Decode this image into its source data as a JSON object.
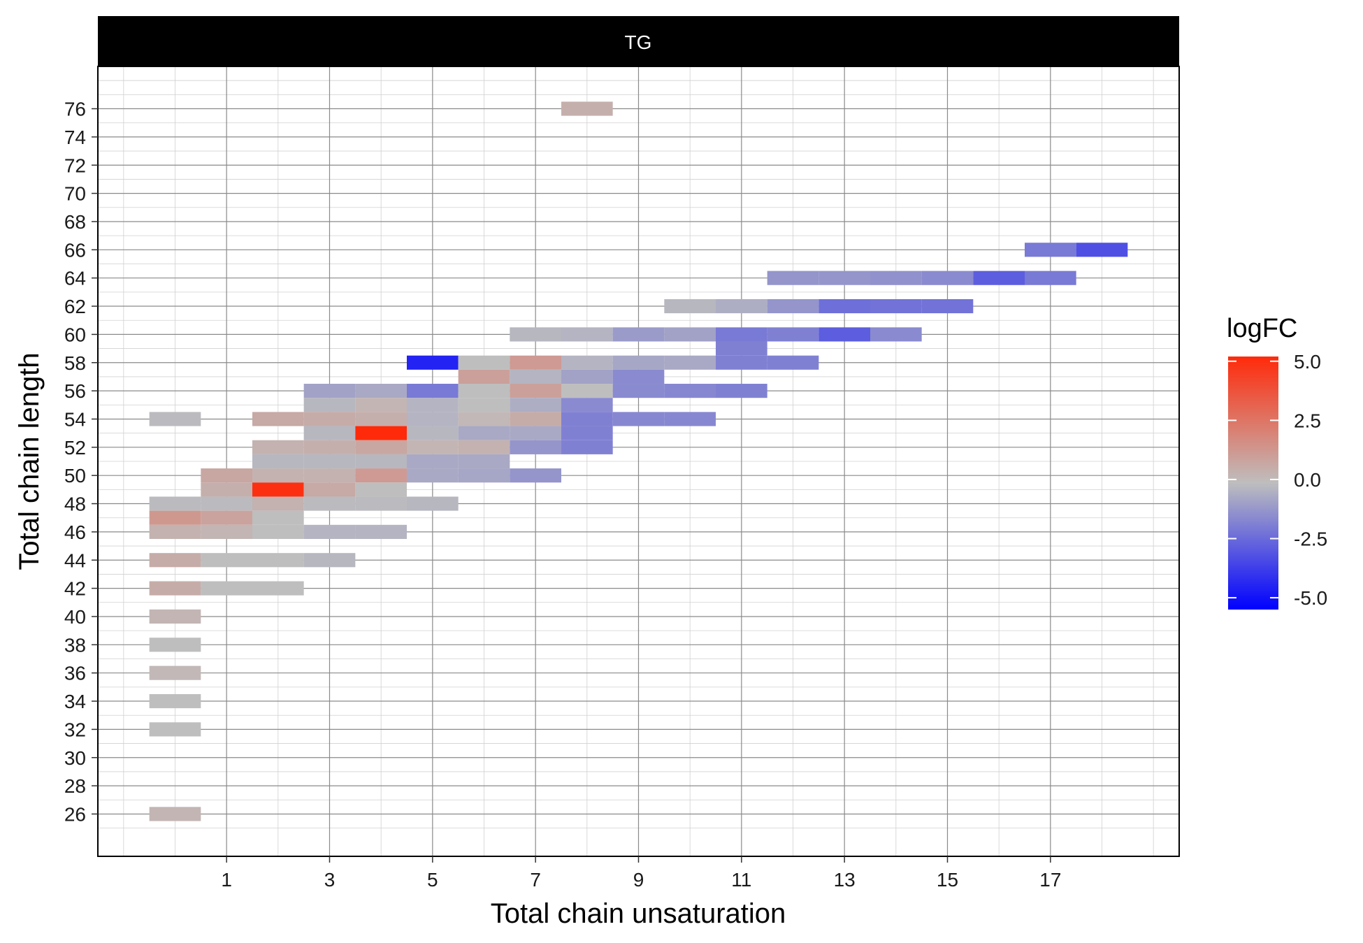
{
  "chart_data": {
    "type": "heatmap",
    "facet_label": "TG",
    "xlabel": "Total chain unsaturation",
    "ylabel": "Total chain length",
    "x_ticks": [
      1,
      3,
      5,
      7,
      9,
      11,
      13,
      15,
      17
    ],
    "y_ticks": [
      26,
      28,
      30,
      32,
      34,
      36,
      38,
      40,
      42,
      44,
      46,
      48,
      50,
      52,
      54,
      56,
      58,
      60,
      62,
      64,
      66,
      68,
      70,
      72,
      74,
      76
    ],
    "xlim": [
      -1.5,
      19.5
    ],
    "ylim": [
      23,
      79
    ],
    "grid": true,
    "legend": {
      "title": "logFC",
      "position": "right",
      "ticks": [
        5.0,
        2.5,
        0.0,
        -2.5,
        -5.0
      ],
      "tick_labels": [
        "5.0",
        "2.5",
        "0.0",
        "-2.5",
        "-5.0"
      ],
      "range": [
        -5.5,
        5.2
      ],
      "low_color": "#0000ff",
      "mid_color": "#bebebe",
      "high_color": "#ff2a0a"
    },
    "cells": [
      {
        "x": 8,
        "y": 76,
        "v": 0.5
      },
      {
        "x": 17,
        "y": 66,
        "v": -2.0
      },
      {
        "x": 18,
        "y": 66,
        "v": -3.2
      },
      {
        "x": 12,
        "y": 64,
        "v": -1.2
      },
      {
        "x": 13,
        "y": 64,
        "v": -1.2
      },
      {
        "x": 14,
        "y": 64,
        "v": -1.3
      },
      {
        "x": 15,
        "y": 64,
        "v": -1.5
      },
      {
        "x": 16,
        "y": 64,
        "v": -2.8
      },
      {
        "x": 17,
        "y": 64,
        "v": -2.0
      },
      {
        "x": 10,
        "y": 62,
        "v": -0.2
      },
      {
        "x": 11,
        "y": 62,
        "v": -0.5
      },
      {
        "x": 12,
        "y": 62,
        "v": -1.2
      },
      {
        "x": 13,
        "y": 62,
        "v": -2.3
      },
      {
        "x": 14,
        "y": 62,
        "v": -2.2
      },
      {
        "x": 15,
        "y": 62,
        "v": -2.2
      },
      {
        "x": 7,
        "y": 60,
        "v": -0.2
      },
      {
        "x": 8,
        "y": 60,
        "v": -0.3
      },
      {
        "x": 9,
        "y": 60,
        "v": -1.0
      },
      {
        "x": 10,
        "y": 60,
        "v": -0.8
      },
      {
        "x": 11,
        "y": 60,
        "v": -2.0
      },
      {
        "x": 12,
        "y": 60,
        "v": -1.8
      },
      {
        "x": 13,
        "y": 60,
        "v": -2.8
      },
      {
        "x": 14,
        "y": 60,
        "v": -1.5
      },
      {
        "x": 5,
        "y": 58,
        "v": -4.5
      },
      {
        "x": 6,
        "y": 58,
        "v": 0.0
      },
      {
        "x": 7,
        "y": 58,
        "v": 1.2
      },
      {
        "x": 8,
        "y": 58,
        "v": -0.3
      },
      {
        "x": 9,
        "y": 58,
        "v": -0.7
      },
      {
        "x": 10,
        "y": 58,
        "v": -0.6
      },
      {
        "x": 11,
        "y": 58,
        "v": -1.8
      },
      {
        "x": 12,
        "y": 58,
        "v": -1.8
      },
      {
        "x": 11,
        "y": 59,
        "v": -1.8
      },
      {
        "x": 6,
        "y": 57,
        "v": 1.0
      },
      {
        "x": 7,
        "y": 57,
        "v": -0.3
      },
      {
        "x": 8,
        "y": 57,
        "v": -0.8
      },
      {
        "x": 9,
        "y": 57,
        "v": -1.5
      },
      {
        "x": 3,
        "y": 56,
        "v": -0.8
      },
      {
        "x": 4,
        "y": 56,
        "v": -0.6
      },
      {
        "x": 5,
        "y": 56,
        "v": -2.0
      },
      {
        "x": 6,
        "y": 56,
        "v": 0.0
      },
      {
        "x": 7,
        "y": 56,
        "v": 1.0
      },
      {
        "x": 8,
        "y": 56,
        "v": 0.0
      },
      {
        "x": 9,
        "y": 56,
        "v": -1.5
      },
      {
        "x": 10,
        "y": 56,
        "v": -1.6
      },
      {
        "x": 11,
        "y": 56,
        "v": -1.8
      },
      {
        "x": 3,
        "y": 55,
        "v": -0.2
      },
      {
        "x": 4,
        "y": 55,
        "v": 0.3
      },
      {
        "x": 5,
        "y": 55,
        "v": -0.3
      },
      {
        "x": 6,
        "y": 55,
        "v": 0.0
      },
      {
        "x": 7,
        "y": 55,
        "v": -0.5
      },
      {
        "x": 8,
        "y": 55,
        "v": -1.5
      },
      {
        "x": 0,
        "y": 54,
        "v": -0.1
      },
      {
        "x": 2,
        "y": 54,
        "v": 0.7
      },
      {
        "x": 3,
        "y": 54,
        "v": 0.6
      },
      {
        "x": 4,
        "y": 54,
        "v": 0.5
      },
      {
        "x": 5,
        "y": 54,
        "v": -0.3
      },
      {
        "x": 6,
        "y": 54,
        "v": 0.2
      },
      {
        "x": 7,
        "y": 54,
        "v": 0.6
      },
      {
        "x": 8,
        "y": 54,
        "v": -1.8
      },
      {
        "x": 9,
        "y": 54,
        "v": -1.6
      },
      {
        "x": 10,
        "y": 54,
        "v": -1.6
      },
      {
        "x": 3,
        "y": 53,
        "v": -0.2
      },
      {
        "x": 4,
        "y": 53,
        "v": 5.0
      },
      {
        "x": 5,
        "y": 53,
        "v": -0.2
      },
      {
        "x": 6,
        "y": 53,
        "v": -0.6
      },
      {
        "x": 7,
        "y": 53,
        "v": -0.6
      },
      {
        "x": 8,
        "y": 53,
        "v": -1.8
      },
      {
        "x": 2,
        "y": 52,
        "v": 0.4
      },
      {
        "x": 3,
        "y": 52,
        "v": 0.5
      },
      {
        "x": 4,
        "y": 52,
        "v": 0.8
      },
      {
        "x": 5,
        "y": 52,
        "v": 0.3
      },
      {
        "x": 6,
        "y": 52,
        "v": 0.4
      },
      {
        "x": 7,
        "y": 52,
        "v": -1.2
      },
      {
        "x": 8,
        "y": 52,
        "v": -1.8
      },
      {
        "x": 2,
        "y": 51,
        "v": -0.2
      },
      {
        "x": 3,
        "y": 51,
        "v": -0.2
      },
      {
        "x": 4,
        "y": 51,
        "v": -0.2
      },
      {
        "x": 5,
        "y": 51,
        "v": -0.6
      },
      {
        "x": 6,
        "y": 51,
        "v": -0.6
      },
      {
        "x": 1,
        "y": 50,
        "v": 0.8
      },
      {
        "x": 2,
        "y": 50,
        "v": 0.4
      },
      {
        "x": 3,
        "y": 50,
        "v": 0.4
      },
      {
        "x": 4,
        "y": 50,
        "v": 1.2
      },
      {
        "x": 5,
        "y": 50,
        "v": -0.6
      },
      {
        "x": 6,
        "y": 50,
        "v": -0.7
      },
      {
        "x": 7,
        "y": 50,
        "v": -1.2
      },
      {
        "x": 1,
        "y": 49,
        "v": 0.5
      },
      {
        "x": 2,
        "y": 49,
        "v": 4.8
      },
      {
        "x": 3,
        "y": 49,
        "v": 0.7
      },
      {
        "x": 4,
        "y": 49,
        "v": 0.0
      },
      {
        "x": 0,
        "y": 48,
        "v": -0.1
      },
      {
        "x": 1,
        "y": 48,
        "v": -0.1
      },
      {
        "x": 2,
        "y": 48,
        "v": 0.4
      },
      {
        "x": 3,
        "y": 48,
        "v": -0.1
      },
      {
        "x": 4,
        "y": 48,
        "v": -0.1
      },
      {
        "x": 5,
        "y": 48,
        "v": -0.2
      },
      {
        "x": 0,
        "y": 47,
        "v": 1.3
      },
      {
        "x": 1,
        "y": 47,
        "v": 0.9
      },
      {
        "x": 2,
        "y": 47,
        "v": 0.0
      },
      {
        "x": 0,
        "y": 46,
        "v": 0.4
      },
      {
        "x": 1,
        "y": 46,
        "v": 0.3
      },
      {
        "x": 2,
        "y": 46,
        "v": 0.0
      },
      {
        "x": 3,
        "y": 46,
        "v": -0.3
      },
      {
        "x": 4,
        "y": 46,
        "v": -0.3
      },
      {
        "x": 0,
        "y": 44,
        "v": 0.6
      },
      {
        "x": 1,
        "y": 44,
        "v": 0.0
      },
      {
        "x": 2,
        "y": 44,
        "v": 0.0
      },
      {
        "x": 3,
        "y": 44,
        "v": -0.2
      },
      {
        "x": 0,
        "y": 42,
        "v": 0.6
      },
      {
        "x": 1,
        "y": 42,
        "v": 0.0
      },
      {
        "x": 2,
        "y": 42,
        "v": 0.0
      },
      {
        "x": 0,
        "y": 40,
        "v": 0.3
      },
      {
        "x": 0,
        "y": 38,
        "v": 0.0
      },
      {
        "x": 0,
        "y": 36,
        "v": 0.2
      },
      {
        "x": 0,
        "y": 34,
        "v": 0.0
      },
      {
        "x": 0,
        "y": 32,
        "v": 0.0
      },
      {
        "x": 0,
        "y": 26,
        "v": 0.3
      }
    ]
  }
}
